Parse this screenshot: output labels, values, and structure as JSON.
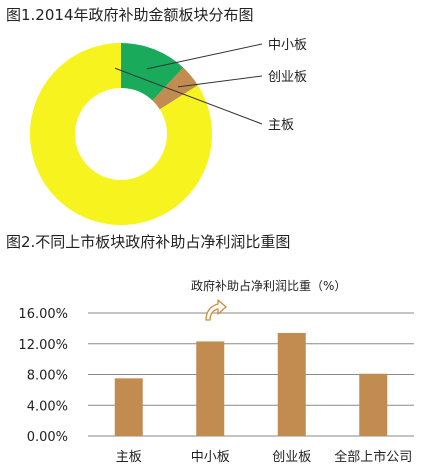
{
  "chart_data": [
    {
      "type": "pie",
      "title": "图1.2014年政府补助金额板块分布图",
      "categories": [
        "中小板",
        "创业板",
        "主板"
      ],
      "values": [
        12,
        4,
        84
      ],
      "colors": [
        "#1aaa5c",
        "#c28b50",
        "#f7f31e"
      ],
      "donut": true
    },
    {
      "type": "bar",
      "title": "图2.不同上市板块政府补助占净利润比重图",
      "series": [
        {
          "name": "政府补助占净利润比重(%)",
          "values": [
            7.5,
            12.3,
            13.4,
            8.1
          ]
        }
      ],
      "categories": [
        "主板",
        "中小板",
        "创业板",
        "全部上市公司"
      ],
      "ylim": [
        0,
        16
      ],
      "yticks": [
        "0.00%",
        "4.00%",
        "8.00%",
        "12.00%",
        "16.00%"
      ],
      "bar_color": "#c28b50",
      "grid": true,
      "legend_text": "政府补助占净利润比重（%）"
    }
  ]
}
